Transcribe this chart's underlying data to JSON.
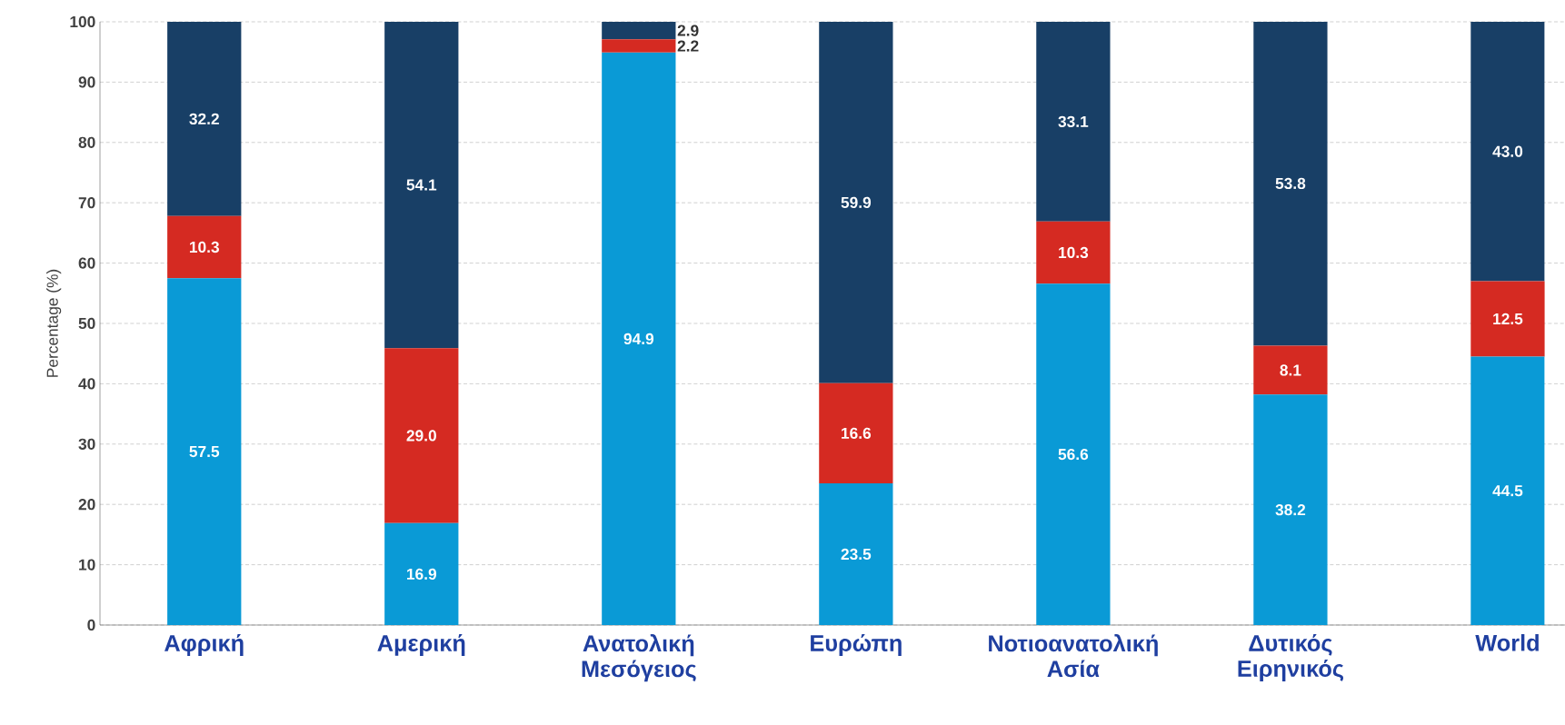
{
  "chart_data": {
    "type": "bar",
    "stacked": true,
    "ylabel": "Percentage (%)",
    "categories": [
      "Αφρική",
      "Αμερική",
      "Ανατολική Μεσόγειος",
      "Ευρώπη",
      "Νοτιοανατολική Ασία",
      "Δυτικός Ειρηνικός",
      "World"
    ],
    "series": [
      {
        "color": "#0a9ad6",
        "values": [
          57.5,
          16.9,
          94.9,
          23.5,
          56.6,
          38.2,
          44.5
        ],
        "value_labels": [
          "57.5",
          "16.9",
          "94.9",
          "23.5",
          "56.6",
          "38.2",
          "44.5"
        ]
      },
      {
        "color": "#d52a22",
        "values": [
          10.3,
          29.0,
          2.2,
          16.6,
          10.3,
          8.1,
          12.5
        ],
        "value_labels": [
          "10.3",
          "29.0",
          "2.2",
          "16.6",
          "10.3",
          "8.1",
          "12.5"
        ]
      },
      {
        "color": "#183f66",
        "values": [
          32.2,
          54.1,
          2.9,
          59.9,
          33.1,
          53.8,
          43.0
        ],
        "value_labels": [
          "32.2",
          "54.1",
          "2.9",
          "59.9",
          "33.1",
          "53.8",
          "43.0"
        ]
      }
    ],
    "ylim": [
      0,
      100
    ],
    "yticks": [
      0,
      10,
      20,
      30,
      40,
      50,
      60,
      70,
      80,
      90,
      100
    ],
    "grid": "y"
  }
}
